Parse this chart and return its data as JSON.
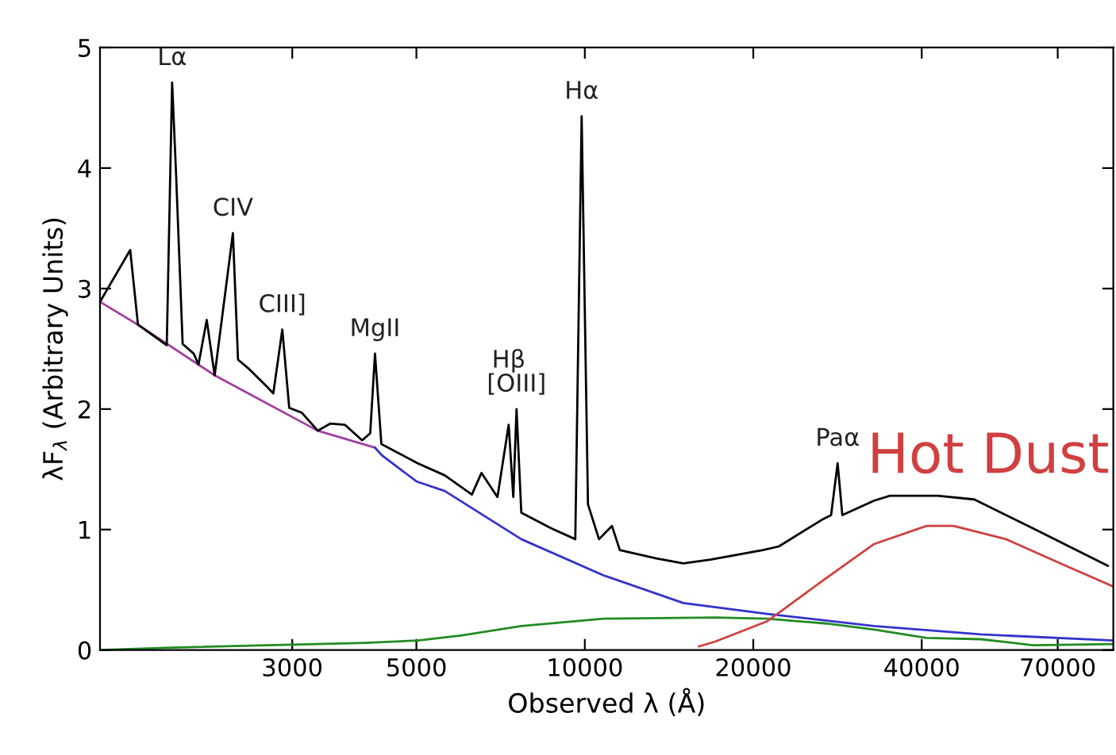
{
  "chart_data": {
    "type": "line",
    "xlabel": "Observed λ (Å)",
    "ylabel": "λF$_{λ}$ (Arbitrary Units)",
    "log": "x",
    "xlim": [
      1360,
      88000
    ],
    "ylim": [
      0,
      5
    ],
    "xticks": [
      3000,
      5000,
      10000,
      20000,
      40000,
      70000
    ],
    "yticks": [
      0,
      1,
      2,
      3,
      4,
      5
    ],
    "series": [
      {
        "color": "#a040a0",
        "x": [
          1360,
          1590,
          2180,
          3333,
          4217
        ],
        "values": [
          2.89,
          2.7,
          2.28,
          1.82,
          1.68
        ]
      },
      {
        "color": "#3333cc",
        "x": [
          4217,
          4330,
          5000,
          5620,
          7700,
          10800,
          15000,
          21200,
          32890,
          50980,
          87700
        ],
        "values": [
          1.68,
          1.62,
          1.4,
          1.32,
          0.92,
          0.62,
          0.39,
          0.3,
          0.2,
          0.13,
          0.08
        ]
      },
      {
        "color": "#228b22",
        "x": [
          1360,
          1825,
          4050,
          5030,
          6000,
          7700,
          10800,
          17100,
          21200,
          27030,
          32890,
          40800,
          50980,
          63240,
          87700
        ],
        "values": [
          0,
          0.02,
          0.06,
          0.08,
          0.12,
          0.2,
          0.26,
          0.27,
          0.26,
          0.22,
          0.17,
          0.1,
          0.09,
          0.04,
          0.05
        ]
      },
      {
        "name": "Hot Dust",
        "color": "#d04040",
        "x": [
          16000,
          17100,
          21200,
          26500,
          32890,
          40800,
          45600,
          56600,
          70700,
          87700
        ],
        "values": [
          0.03,
          0.07,
          0.24,
          0.57,
          0.88,
          1.03,
          1.03,
          0.92,
          0.72,
          0.53
        ]
      },
      {
        "color": "#000000",
        "x": [
          1360,
          1540,
          1590,
          1790,
          1830,
          1860,
          1911,
          2000,
          2040,
          2110,
          2180,
          2350,
          2400,
          2515,
          2685,
          2775,
          2880,
          2963,
          3120,
          3333,
          3510,
          3724,
          4000,
          4135,
          4217,
          4329,
          4620,
          5030,
          5620,
          6283,
          6535,
          6980,
          7310,
          7450,
          7550,
          7700,
          8715,
          9615,
          9870,
          10130,
          10600,
          11180,
          11550,
          13420,
          15000,
          16770,
          20800,
          22220,
          26500,
          27550,
          28300,
          28850,
          32890,
          35100,
          42740,
          49660,
          63240,
          86000
        ],
        "values": [
          2.89,
          3.32,
          2.7,
          2.53,
          4.71,
          3.95,
          2.54,
          2.46,
          2.37,
          2.74,
          2.28,
          3.46,
          2.41,
          2.33,
          2.2,
          2.13,
          2.66,
          2.01,
          1.97,
          1.82,
          1.88,
          1.87,
          1.74,
          1.8,
          2.46,
          1.71,
          1.64,
          1.55,
          1.45,
          1.29,
          1.47,
          1.27,
          1.87,
          1.27,
          2.0,
          1.14,
          1.01,
          0.92,
          4.43,
          1.21,
          0.92,
          1.03,
          0.83,
          0.76,
          0.72,
          0.75,
          0.83,
          0.86,
          1.08,
          1.12,
          1.55,
          1.12,
          1.24,
          1.28,
          1.28,
          1.25,
          1.01,
          0.7
        ]
      }
    ],
    "annotations": [
      {
        "text": "Lα",
        "x": 1830,
        "y": 4.71
      },
      {
        "text": "CIV",
        "x": 2350,
        "y": 3.46
      },
      {
        "text": "CIII]",
        "x": 2880,
        "y": 2.66
      },
      {
        "text": "MgII",
        "x": 4217,
        "y": 2.46
      },
      {
        "text": "Hβ",
        "x": 7310,
        "y": 1.87
      },
      {
        "text": "[OIII]",
        "x": 7550,
        "y": 2.0
      },
      {
        "text": "Hα",
        "x": 9870,
        "y": 4.43
      },
      {
        "text": "Paα",
        "x": 28300,
        "y": 1.55
      }
    ]
  }
}
